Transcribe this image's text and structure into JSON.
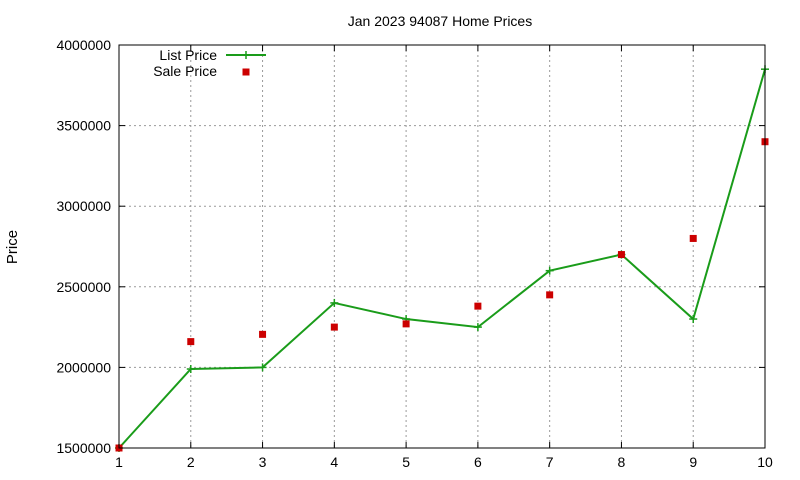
{
  "chart_data": {
    "type": "line",
    "title": "Jan 2023 94087 Home Prices",
    "xlabel": "",
    "ylabel": "Price",
    "xlim": [
      1,
      10
    ],
    "ylim": [
      1500000,
      4000000
    ],
    "x_ticks": [
      1,
      2,
      3,
      4,
      5,
      6,
      7,
      8,
      9,
      10
    ],
    "y_ticks": [
      1500000,
      2000000,
      2500000,
      3000000,
      3500000,
      4000000
    ],
    "grid": true,
    "legend_position": "top-left",
    "series": [
      {
        "name": "List Price",
        "style": "linespoints",
        "marker": "plus",
        "color": "#1a9c1a",
        "x": [
          1,
          2,
          3,
          4,
          5,
          6,
          7,
          8,
          9,
          10
        ],
        "values": [
          1500000,
          1990000,
          2000000,
          2400000,
          2300000,
          2250000,
          2600000,
          2700000,
          2300000,
          3850000
        ]
      },
      {
        "name": "Sale Price",
        "style": "points",
        "marker": "square",
        "color": "#cc0000",
        "x": [
          1,
          2,
          3,
          4,
          5,
          6,
          7,
          8,
          9,
          10
        ],
        "values": [
          1500000,
          2160000,
          2205000,
          2250000,
          2270000,
          2380000,
          2450000,
          2700000,
          2800000,
          3400000
        ]
      }
    ]
  }
}
